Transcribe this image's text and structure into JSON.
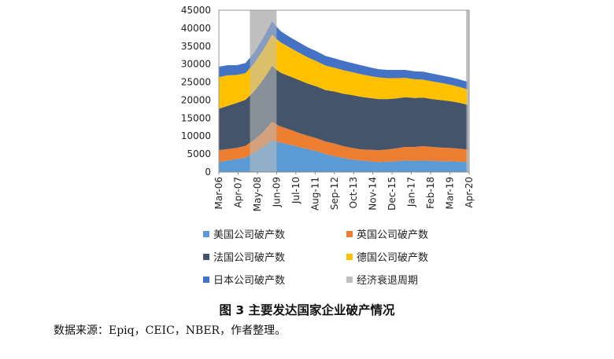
{
  "chart_data": {
    "type": "area",
    "stacked": true,
    "x_tick_labels": [
      "Mar-06",
      "Apr-07",
      "May-08",
      "Jun-09",
      "Jul-10",
      "Aug-11",
      "Sep-12",
      "Oct-13",
      "Nov-14",
      "Dec-15",
      "Jan-17",
      "Feb-18",
      "Mar-19",
      "Apr-20"
    ],
    "x_start": "2006-03",
    "x_end": "2020-04",
    "ylim": [
      0,
      45000
    ],
    "y_ticks": [
      0,
      5000,
      10000,
      15000,
      20000,
      25000,
      30000,
      35000,
      40000,
      45000
    ],
    "y_tick_labels": [
      "0",
      "5000",
      "10000",
      "15000",
      "20000",
      "25000",
      "30000",
      "35000",
      "40000",
      "45000"
    ],
    "x": [
      "2006-03",
      "2006-09",
      "2007-03",
      "2007-09",
      "2008-03",
      "2008-09",
      "2009-03",
      "2009-06",
      "2009-09",
      "2010-03",
      "2010-09",
      "2011-03",
      "2011-09",
      "2012-03",
      "2012-09",
      "2013-03",
      "2013-09",
      "2014-03",
      "2014-09",
      "2015-03",
      "2015-09",
      "2016-03",
      "2016-09",
      "2017-03",
      "2017-09",
      "2018-03",
      "2018-09",
      "2019-03",
      "2019-09",
      "2020-03"
    ],
    "series": [
      {
        "name": "美国公司破产数",
        "color": "#5b9bd5",
        "values": [
          2800,
          3200,
          3600,
          4000,
          5500,
          7000,
          8800,
          8400,
          8200,
          7600,
          7000,
          6400,
          5800,
          5000,
          4400,
          3900,
          3500,
          3200,
          3000,
          2800,
          2900,
          3000,
          3200,
          3100,
          3200,
          3100,
          3000,
          3000,
          2900,
          2800
        ]
      },
      {
        "name": "英国公司破产数",
        "color": "#ed7d31",
        "values": [
          3300,
          3200,
          3100,
          3300,
          3500,
          4200,
          5200,
          4800,
          4400,
          4200,
          3900,
          3700,
          3600,
          3500,
          3500,
          3300,
          3200,
          3100,
          3200,
          3300,
          3400,
          3600,
          3800,
          3900,
          4000,
          3900,
          3800,
          3700,
          3600,
          3500
        ]
      },
      {
        "name": "法国公司破产数",
        "color": "#44546a",
        "values": [
          11500,
          12000,
          12500,
          12800,
          13500,
          14500,
          15500,
          15200,
          15000,
          14800,
          14700,
          14500,
          14400,
          14300,
          14500,
          14600,
          14700,
          14600,
          14400,
          14200,
          14000,
          13900,
          13800,
          13600,
          13500,
          13300,
          13200,
          13000,
          12800,
          12400
        ]
      },
      {
        "name": "德国公司破产数",
        "color": "#ffc000",
        "values": [
          8800,
          8500,
          7800,
          7400,
          7800,
          8300,
          8800,
          8600,
          8400,
          8000,
          7600,
          7300,
          7000,
          6800,
          6600,
          6500,
          6400,
          6300,
          6100,
          6000,
          5800,
          5600,
          5400,
          5200,
          5000,
          4900,
          4800,
          4600,
          4400,
          4300
        ]
      },
      {
        "name": "日本公司破产数",
        "color": "#4472c4",
        "values": [
          2900,
          2800,
          2700,
          2800,
          3000,
          3300,
          3600,
          3400,
          3100,
          2900,
          2900,
          2800,
          2800,
          2700,
          2600,
          2600,
          2500,
          2500,
          2400,
          2300,
          2300,
          2300,
          2200,
          2200,
          2200,
          2200,
          2100,
          2100,
          2100,
          2100
        ]
      }
    ],
    "recessions": [
      {
        "name": "经济衰退周期",
        "start": "2007-12",
        "end": "2009-06"
      },
      {
        "name": "经济衰退周期",
        "start": "2020-02",
        "end": "2020-04"
      }
    ],
    "recession_color": "#bfbfbf",
    "legend_position": "bottom",
    "grid": false
  },
  "legend": {
    "items": [
      {
        "label": "美国公司破产数",
        "color": "#5b9bd5"
      },
      {
        "label": "英国公司破产数",
        "color": "#ed7d31"
      },
      {
        "label": "法国公司破产数",
        "color": "#44546a"
      },
      {
        "label": "德国公司破产数",
        "color": "#ffc000"
      },
      {
        "label": "日本公司破产数",
        "color": "#4472c4"
      },
      {
        "label": "经济衰退周期",
        "color": "#bfbfbf"
      }
    ]
  },
  "figure": {
    "caption": "图 3  主要发达国家企业破产情况",
    "source": "数据来源：Epiq，CEIC，NBER，作者整理。"
  }
}
